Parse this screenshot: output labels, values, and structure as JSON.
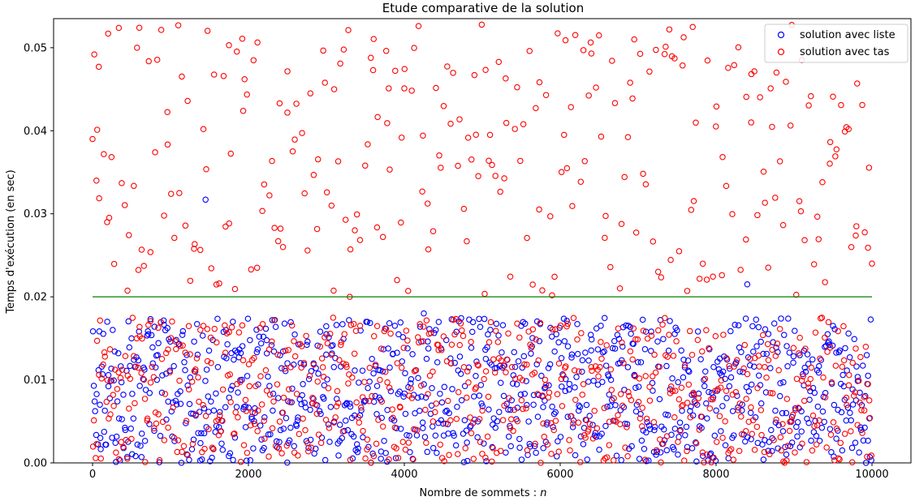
{
  "chart_data": {
    "type": "scatter",
    "title": "Etude comparative de la solution",
    "xlabel": "Nombre de sommets : n",
    "xlabel_prefix": "Nombre de sommets : ",
    "xlabel_var": "n",
    "ylabel": "Temps d'exécution (en sec)",
    "xlim": [
      -500,
      10500
    ],
    "ylim": [
      0,
      0.0535
    ],
    "x_ticks": [
      0,
      2000,
      4000,
      6000,
      8000,
      10000
    ],
    "x_tick_labels": [
      "0",
      "2000",
      "4000",
      "6000",
      "8000",
      "10000"
    ],
    "y_ticks": [
      0,
      0.01,
      0.02,
      0.03,
      0.04,
      0.05
    ],
    "y_tick_labels": [
      "0.00",
      "0.01",
      "0.02",
      "0.03",
      "0.04",
      "0.05"
    ],
    "grid": false,
    "legend_position": "top-right",
    "marker": "hollow circle",
    "series": [
      {
        "name": "solution avec liste",
        "color": "#0000ff",
        "x_range": [
          0,
          10000
        ],
        "count": 1000,
        "points": [
          [
            500,
            0.015
          ],
          [
            1450,
            0.0317
          ],
          [
            1800,
            0.017
          ],
          [
            3000,
            0.0155
          ],
          [
            4250,
            0.018
          ],
          [
            5500,
            0.0165
          ],
          [
            7100,
            0.0158
          ],
          [
            8400,
            0.0215
          ],
          [
            9500,
            0.0165
          ],
          [
            9950,
            0.0105
          ],
          [
            2500,
            0.012
          ],
          [
            6800,
            0.014
          ],
          [
            100,
            0.003
          ],
          [
            3700,
            0.0005
          ],
          [
            5800,
            0.009
          ],
          [
            8900,
            0.006
          ]
        ],
        "typical_range": [
          0,
          0.0175
        ]
      },
      {
        "name": "solution avec tas",
        "color": "#ff0000",
        "x_range": [
          0,
          10000
        ],
        "count": 1000,
        "points": [
          [
            0,
            0.039
          ],
          [
            50,
            0.034
          ],
          [
            80,
            0.0477
          ],
          [
            200,
            0.0517
          ],
          [
            600,
            0.0524
          ],
          [
            1100,
            0.0527
          ],
          [
            1750,
            0.0503
          ],
          [
            1950,
            0.0462
          ],
          [
            2400,
            0.0433
          ],
          [
            3100,
            0.045
          ],
          [
            3600,
            0.0473
          ],
          [
            3800,
            0.0451
          ],
          [
            4000,
            0.0451
          ],
          [
            4900,
            0.0467
          ],
          [
            5300,
            0.0463
          ],
          [
            6400,
            0.0493
          ],
          [
            6950,
            0.051
          ],
          [
            7400,
            0.0522
          ],
          [
            7700,
            0.0525
          ],
          [
            8700,
            0.0451
          ],
          [
            9100,
            0.0485
          ],
          [
            9500,
            0.0441
          ],
          [
            9800,
            0.0285
          ],
          [
            10000,
            0.024
          ],
          [
            3300,
            0.02
          ],
          [
            5100,
            0.0395
          ],
          [
            6050,
            0.0395
          ],
          [
            8450,
            0.041
          ]
        ],
        "typical_range": [
          0,
          0.0175
        ],
        "outlier_range": [
          0.02,
          0.053
        ]
      }
    ],
    "reference_line": {
      "y": 0.02,
      "x_range": [
        0,
        10000
      ],
      "color": "#008000"
    }
  }
}
